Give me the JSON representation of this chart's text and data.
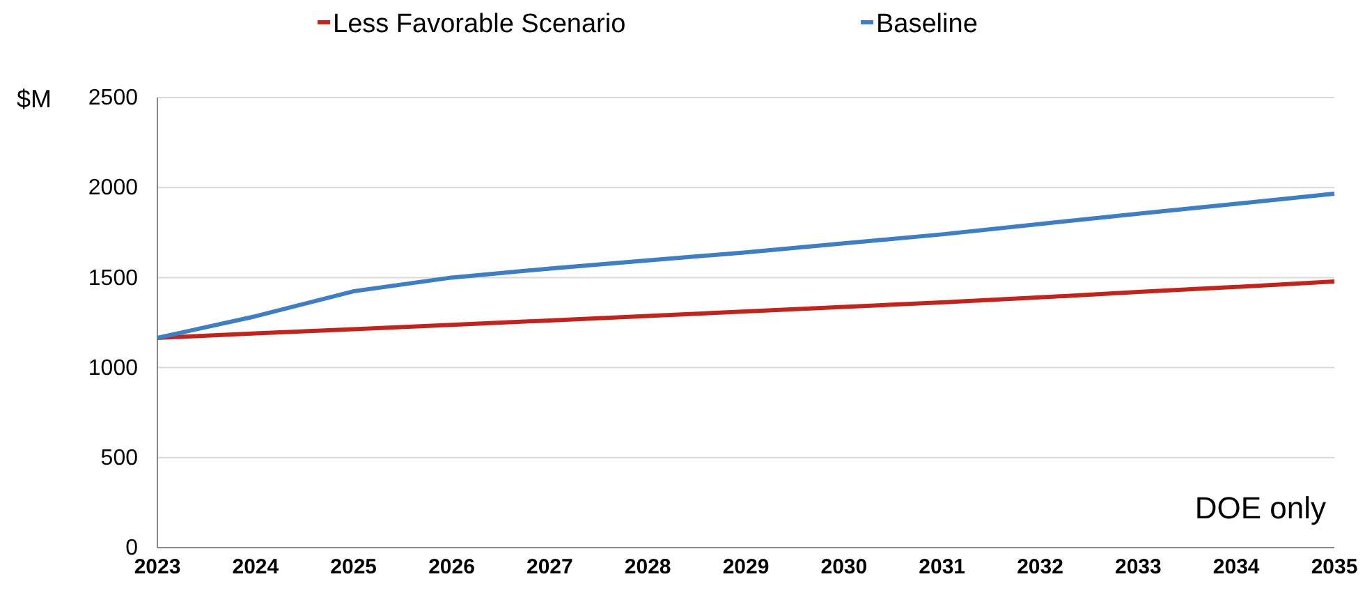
{
  "chart_data": {
    "type": "line",
    "ylabel": "$M",
    "annotations": [
      "DOE only"
    ],
    "x": [
      2023,
      2024,
      2025,
      2026,
      2027,
      2028,
      2029,
      2030,
      2031,
      2032,
      2033,
      2034,
      2035
    ],
    "series": [
      {
        "name": "Less Favorable Scenario",
        "color": "#c0241c",
        "values": [
          1165,
          1190,
          1213,
          1237,
          1262,
          1287,
          1312,
          1337,
          1362,
          1390,
          1420,
          1448,
          1478
        ]
      },
      {
        "name": "Baseline",
        "color": "#3f7fc1",
        "values": [
          1165,
          1285,
          1424,
          1500,
          1550,
          1595,
          1640,
          1690,
          1740,
          1798,
          1855,
          1910,
          1966
        ]
      }
    ],
    "xlim": [
      2023,
      2035
    ],
    "xticks": [
      2023,
      2024,
      2025,
      2026,
      2027,
      2028,
      2029,
      2030,
      2031,
      2032,
      2033,
      2034,
      2035
    ],
    "ylim": [
      0,
      2500
    ],
    "yticks": [
      0,
      500,
      1000,
      1500,
      2000,
      2500
    ],
    "grid": "y",
    "legend": "top",
    "marker": "none",
    "line_style": "solid"
  }
}
